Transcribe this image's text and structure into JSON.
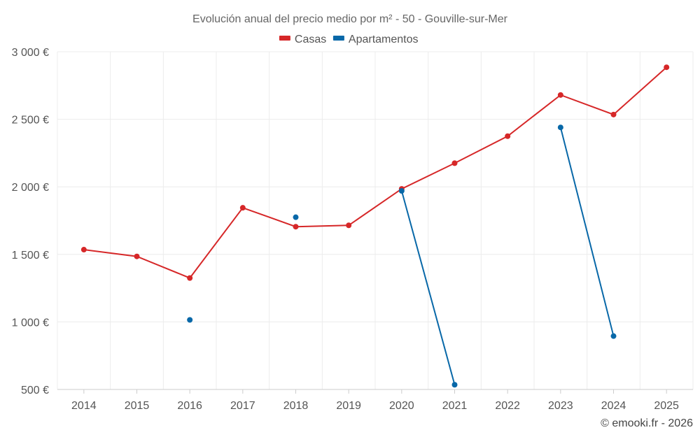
{
  "chart_data": {
    "type": "line",
    "title": "Evolución anual del precio medio por m² - 50 - Gouville-sur-Mer",
    "categories": [
      "2014",
      "2015",
      "2016",
      "2017",
      "2018",
      "2019",
      "2020",
      "2021",
      "2022",
      "2023",
      "2024",
      "2025"
    ],
    "y_tick_labels": [
      "500 €",
      "1 000 €",
      "1 500 €",
      "2 000 €",
      "2 500 €",
      "3 000 €"
    ],
    "y_ticks": [
      500,
      1000,
      1500,
      2000,
      2500,
      3000
    ],
    "ylim": [
      500,
      3000
    ],
    "grid": true,
    "legend_position": "top-center",
    "series": [
      {
        "name": "Casas",
        "color": "#d62728",
        "values": [
          1535,
          1485,
          1325,
          1845,
          1705,
          1715,
          1985,
          2175,
          2375,
          2680,
          2535,
          2885
        ]
      },
      {
        "name": "Apartamentos",
        "color": "#0868a8",
        "values": [
          null,
          null,
          1015,
          null,
          1775,
          null,
          1970,
          535,
          null,
          2440,
          895,
          null
        ]
      }
    ],
    "credit": "© emooki.fr - 2026"
  }
}
